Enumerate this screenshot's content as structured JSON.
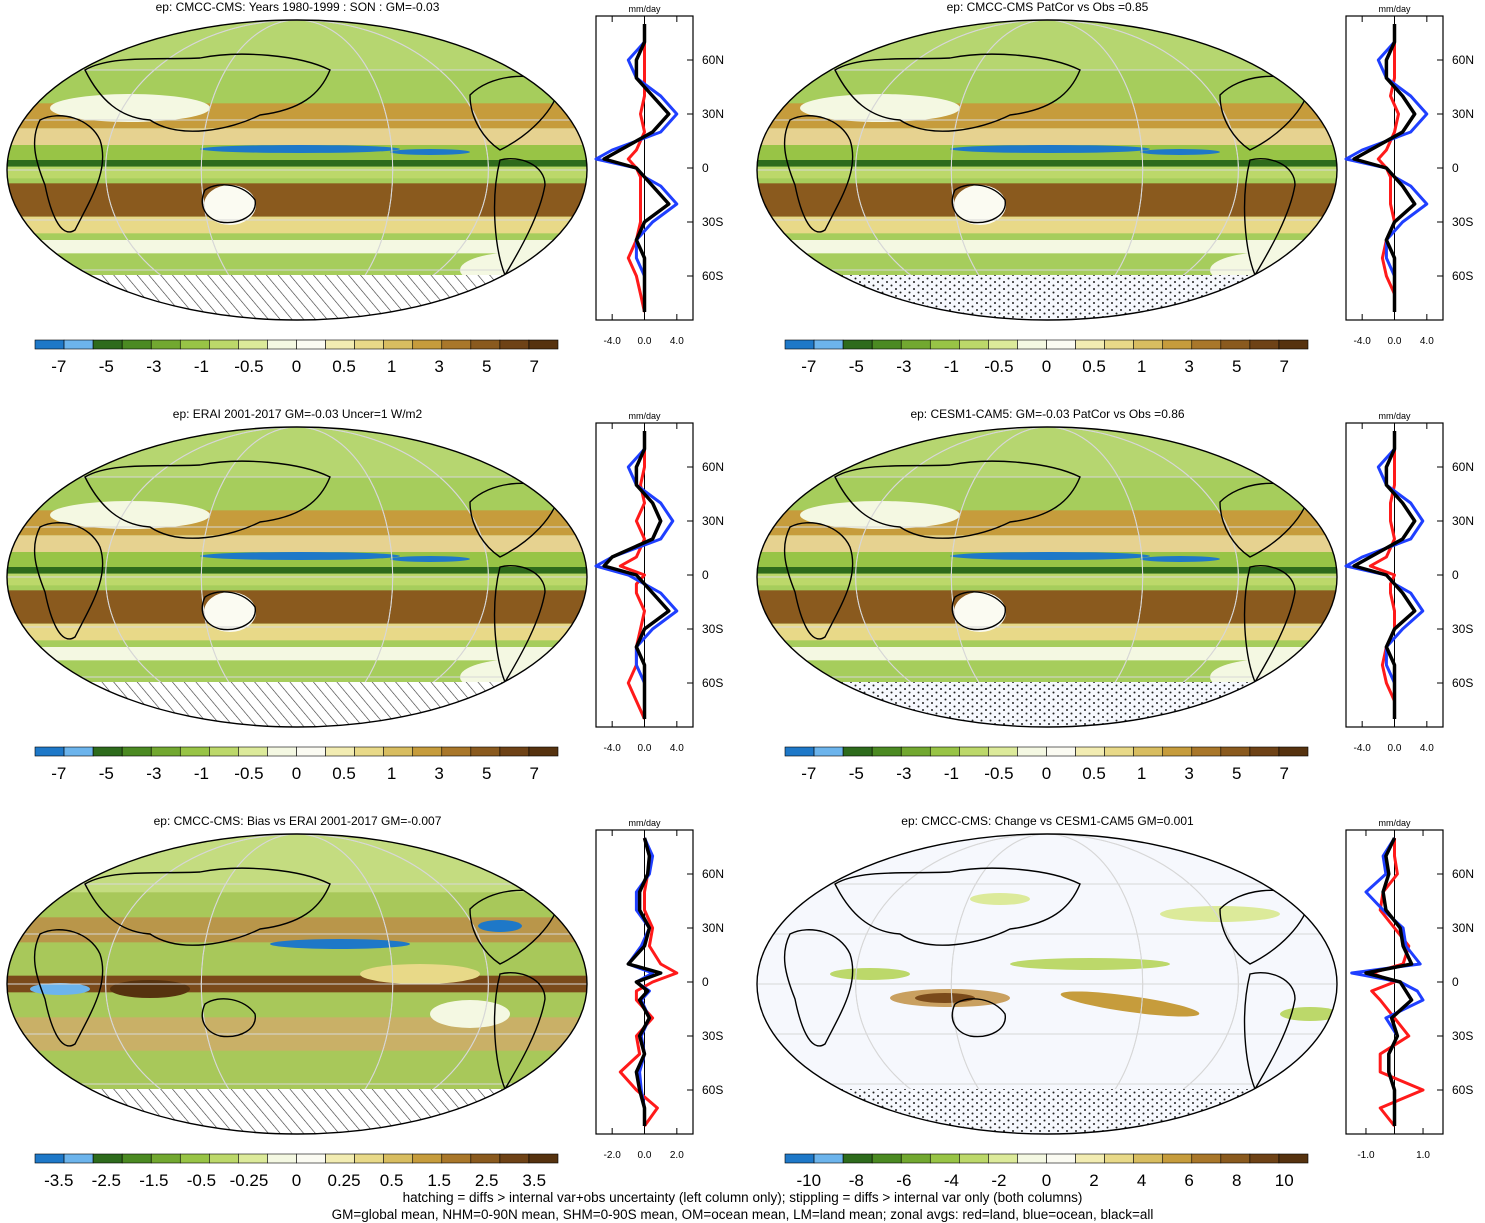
{
  "footer": {
    "line1": "hatching = diffs > internal var+obs uncertainty (left column only); stippling = diffs > internal var only (both columns)",
    "line2": "GM=global mean, NHM=0-90N mean, SHM=0-90S mean, OM=ocean mean, LM=land mean; zonal avgs: red=land, blue=ocean, black=all"
  },
  "colors": {
    "land": "#ff1a1a",
    "ocean": "#1f3fff",
    "all": "#000000",
    "scale": [
      "#1e78c8",
      "#6cb4ec",
      "#2e6b1c",
      "#4b8a22",
      "#72a830",
      "#98c446",
      "#bcd86a",
      "#dcea9a",
      "#f4f8e2",
      "#fbfbf2",
      "#f2ecb2",
      "#e8d988",
      "#d8bd60",
      "#c69c3c",
      "#a9772a",
      "#8a5a1e",
      "#6e4216",
      "#56320f"
    ]
  },
  "chart_data": [
    {
      "type": "heatmap",
      "title": "ep: CMCC-CMS: Years 1980-1999 : SON : GM=-0.03",
      "map_style": "bands",
      "hatch": "diag",
      "colorbar_labels": [
        "-7",
        "-5",
        "-3",
        "-1",
        "-0.5",
        "0",
        "0.5",
        "1",
        "3",
        "5",
        "7"
      ],
      "zonal": {
        "unit": "mm/day",
        "xlim": [
          -6,
          6
        ],
        "xtick_labels": [
          "-4.0",
          "0.0",
          "4.0"
        ],
        "xtick_values": [
          -4,
          0,
          4
        ],
        "lat_labels": [
          "60N",
          "30N",
          "0",
          "30S",
          "60S"
        ],
        "lat": [
          80,
          70,
          60,
          50,
          40,
          30,
          20,
          10,
          5,
          0,
          -5,
          -10,
          -20,
          -30,
          -40,
          -50,
          -60,
          -70,
          -80
        ],
        "all": [
          0,
          0,
          -1,
          -1,
          1,
          3,
          1,
          -3,
          -5,
          -1,
          0,
          1,
          3,
          0,
          -1,
          0,
          0,
          0,
          0
        ],
        "land": [
          0,
          0,
          0,
          0,
          0,
          -0.5,
          0,
          -1,
          -2,
          -1,
          -0.5,
          -0.5,
          -0.5,
          -0.5,
          -1,
          -2,
          -1,
          -0.5,
          0
        ],
        "ocean": [
          0,
          0,
          -2,
          -1,
          2,
          4,
          2,
          -4,
          -6,
          -1,
          0,
          2,
          4,
          1,
          -1,
          -1,
          0,
          0,
          0
        ]
      }
    },
    {
      "type": "heatmap",
      "title": "ep: CMCC-CMS PatCor vs Obs =0.85",
      "map_style": "bands",
      "hatch": "dots",
      "colorbar_labels": [
        "-7",
        "-5",
        "-3",
        "-1",
        "-0.5",
        "0",
        "0.5",
        "1",
        "3",
        "5",
        "7"
      ],
      "zonal": {
        "unit": "mm/day",
        "xlim": [
          -6,
          6
        ],
        "xtick_labels": [
          "-4.0",
          "0.0",
          "4.0"
        ],
        "xtick_values": [
          -4,
          0,
          4
        ],
        "lat_labels": [
          "60N",
          "30N",
          "0",
          "30S",
          "60S"
        ],
        "lat": [
          80,
          70,
          60,
          50,
          40,
          30,
          20,
          10,
          5,
          0,
          -5,
          -10,
          -20,
          -30,
          -40,
          -50,
          -60,
          -70,
          -80
        ],
        "all": [
          0,
          0,
          -1,
          -1,
          1,
          2.5,
          1,
          -3,
          -5,
          -1,
          0,
          1,
          2.5,
          0,
          -1,
          0,
          0,
          0,
          0
        ],
        "land": [
          0,
          0,
          0,
          0,
          -0.5,
          0.5,
          0,
          -1,
          -2,
          -1,
          -0.5,
          -0.5,
          -0.5,
          0,
          -1,
          -1.5,
          -1,
          0,
          0
        ],
        "ocean": [
          0,
          0,
          -2,
          -1,
          2,
          4,
          2,
          -4,
          -6,
          -1,
          0,
          2,
          4,
          1,
          -1,
          -1,
          0,
          0,
          0
        ]
      }
    },
    {
      "type": "heatmap",
      "title": "ep: ERAI 2001-2017 GM=-0.03 Uncer=1 W/m2",
      "map_style": "bands",
      "hatch": "diag",
      "colorbar_labels": [
        "-7",
        "-5",
        "-3",
        "-1",
        "-0.5",
        "0",
        "0.5",
        "1",
        "3",
        "5",
        "7"
      ],
      "zonal": {
        "unit": "mm/day",
        "xlim": [
          -6,
          6
        ],
        "xtick_labels": [
          "-4.0",
          "0.0",
          "4.0"
        ],
        "xtick_values": [
          -4,
          0,
          4
        ],
        "lat_labels": [
          "60N",
          "30N",
          "0",
          "30S",
          "60S"
        ],
        "lat": [
          80,
          70,
          60,
          50,
          40,
          30,
          20,
          10,
          5,
          0,
          -5,
          -10,
          -20,
          -30,
          -40,
          -50,
          -60,
          -70,
          -80
        ],
        "all": [
          0,
          0,
          -1,
          -1,
          1,
          2,
          1,
          -4,
          -5,
          -1,
          0,
          1,
          3,
          0,
          -1,
          0,
          0,
          0,
          0
        ],
        "land": [
          0,
          0,
          0,
          -0.5,
          0,
          -1,
          0,
          -1,
          -3,
          0,
          -1,
          -1,
          0,
          -0.5,
          -1,
          -1,
          -2,
          -1,
          0
        ],
        "ocean": [
          0,
          0,
          -2,
          -1,
          2,
          3.5,
          2,
          -4,
          -6,
          -2,
          0,
          2,
          4,
          1,
          -1,
          -1,
          0,
          0,
          0
        ]
      }
    },
    {
      "type": "heatmap",
      "title": "ep: CESM1-CAM5: GM=-0.03 PatCor vs Obs =0.86",
      "map_style": "bands",
      "hatch": "dots",
      "colorbar_labels": [
        "-7",
        "-5",
        "-3",
        "-1",
        "-0.5",
        "0",
        "0.5",
        "1",
        "3",
        "5",
        "7"
      ],
      "zonal": {
        "unit": "mm/day",
        "xlim": [
          -6,
          6
        ],
        "xtick_labels": [
          "-4.0",
          "0.0",
          "4.0"
        ],
        "xtick_values": [
          -4,
          0,
          4
        ],
        "lat_labels": [
          "60N",
          "30N",
          "0",
          "30S",
          "60S"
        ],
        "lat": [
          80,
          70,
          60,
          50,
          40,
          30,
          20,
          10,
          5,
          0,
          -5,
          -10,
          -20,
          -30,
          -40,
          -50,
          -60,
          -70,
          -80
        ],
        "all": [
          0,
          0,
          -1,
          -1,
          1,
          2.5,
          1,
          -3,
          -5,
          -1,
          0,
          1,
          2.5,
          0,
          -1,
          0,
          0,
          0,
          0
        ],
        "land": [
          0,
          0,
          0,
          0,
          -0.5,
          -0.5,
          0,
          -1,
          -3,
          0,
          -0.5,
          -0.5,
          0,
          0,
          -1,
          -1.5,
          -1,
          0,
          0
        ],
        "ocean": [
          0,
          0,
          -2,
          -1,
          2,
          3.5,
          2,
          -4,
          -6,
          -1,
          0,
          2,
          3.5,
          1,
          -1,
          -1,
          0,
          0,
          0
        ]
      }
    },
    {
      "type": "heatmap",
      "title": "ep: CMCC-CMS: Bias vs ERAI 2001-2017  GM=-0.007",
      "map_style": "bias",
      "hatch": "diag",
      "colorbar_labels": [
        "-3.5",
        "-2.5",
        "-1.5",
        "-0.5",
        "-0.25",
        "0",
        "0.25",
        "0.5",
        "1.5",
        "2.5",
        "3.5"
      ],
      "zonal": {
        "unit": "mm/day",
        "xlim": [
          -3,
          3
        ],
        "xtick_labels": [
          "-2.0",
          "0.0",
          "2.0"
        ],
        "xtick_values": [
          -2,
          0,
          2
        ],
        "lat_labels": [
          "60N",
          "30N",
          "0",
          "30S",
          "60S"
        ],
        "lat": [
          80,
          70,
          60,
          50,
          40,
          30,
          20,
          10,
          5,
          0,
          -5,
          -10,
          -20,
          -30,
          -40,
          -50,
          -60,
          -70,
          -80
        ],
        "all": [
          0,
          0.3,
          0.2,
          -0.3,
          -0.3,
          0.3,
          0,
          -1,
          1,
          -0.5,
          0.2,
          -0.3,
          0.3,
          -0.3,
          0,
          -0.5,
          -0.3,
          0,
          0
        ],
        "land": [
          0,
          0.3,
          0.2,
          0,
          0,
          0.5,
          0.3,
          1,
          2,
          0.5,
          -0.5,
          -0.5,
          0.5,
          -0.5,
          -0.3,
          -1.5,
          -0.5,
          0.8,
          0
        ],
        "ocean": [
          0,
          0.5,
          0.3,
          -0.5,
          -0.5,
          0.3,
          -0.2,
          -1,
          0.5,
          -0.5,
          0.3,
          -0.2,
          0.3,
          -0.2,
          0,
          -0.3,
          -0.2,
          0,
          0
        ]
      }
    },
    {
      "type": "heatmap",
      "title": "ep: CMCC-CMS: Change vs CESM1-CAM5 GM=0.001",
      "map_style": "change",
      "hatch": "dots",
      "colorbar_labels": [
        "-10",
        "-8",
        "-6",
        "-4",
        "-2",
        "0",
        "2",
        "4",
        "6",
        "8",
        "10"
      ],
      "zonal": {
        "unit": "mm/day",
        "xlim": [
          -1.7,
          1.7
        ],
        "xtick_labels": [
          "-1.0",
          "1.0"
        ],
        "xtick_values": [
          -1,
          1
        ],
        "lat_labels": [
          "60N",
          "30N",
          "0",
          "30S",
          "60S"
        ],
        "lat": [
          80,
          70,
          60,
          50,
          40,
          30,
          20,
          10,
          5,
          0,
          -5,
          -10,
          -20,
          -30,
          -40,
          -50,
          -60,
          -70,
          -80
        ],
        "all": [
          0,
          -0.3,
          -0.2,
          -0.4,
          -0.3,
          0.2,
          0.3,
          0.6,
          -1,
          0.2,
          0.4,
          0.6,
          -0.1,
          0.1,
          -0.2,
          -0.2,
          0,
          0,
          0
        ],
        "land": [
          0,
          0,
          0.1,
          -0.4,
          -0.5,
          0,
          0.5,
          0.3,
          -0.8,
          0,
          -0.8,
          -0.5,
          0,
          0.5,
          -0.5,
          -0.5,
          1,
          -0.5,
          0
        ],
        "ocean": [
          0,
          -0.4,
          -0.3,
          -1,
          -0.4,
          0.3,
          0.4,
          0.9,
          -1.5,
          0.2,
          0.8,
          1,
          -0.3,
          0.1,
          -0.2,
          -0.2,
          0,
          0,
          0
        ]
      }
    }
  ]
}
